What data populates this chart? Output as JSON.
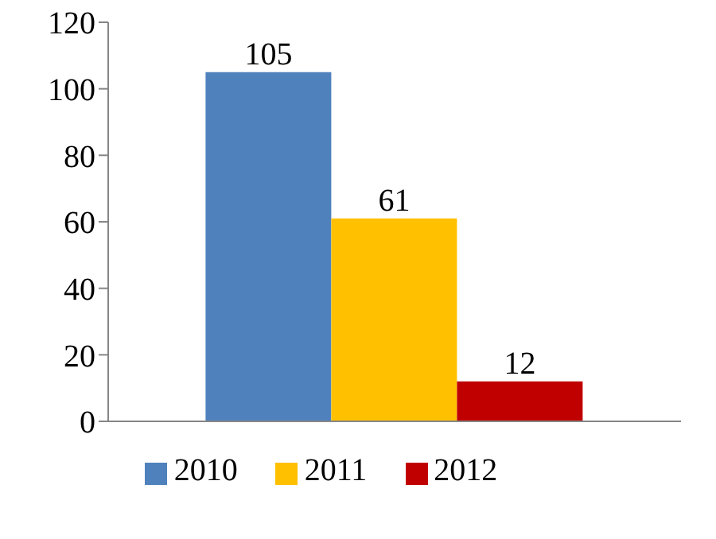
{
  "chart_data": {
    "type": "bar",
    "categories": [
      null
    ],
    "series": [
      {
        "name": "2010",
        "color": "#4f81bd",
        "values": [
          105
        ]
      },
      {
        "name": "2011",
        "color": "#ffc000",
        "values": [
          61
        ]
      },
      {
        "name": "2012",
        "color": "#c00000",
        "values": [
          12
        ]
      }
    ],
    "ylim": [
      0,
      120
    ],
    "yticks": [
      0,
      20,
      40,
      60,
      80,
      100,
      120
    ],
    "grid": false,
    "legend": "bottom",
    "data_labels": true
  }
}
